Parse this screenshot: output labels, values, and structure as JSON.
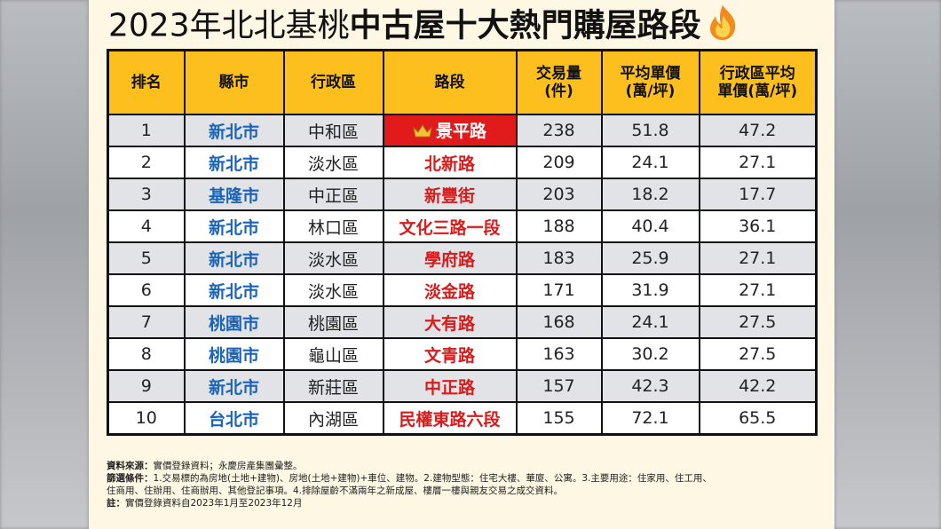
{
  "title": {
    "light": "2023年北北基桃",
    "bold": "中古屋十大熱門購屋路段"
  },
  "headers": [
    "排名",
    "縣市",
    "行政區",
    "路段",
    "交易量\n(件)",
    "平均單價\n(萬/坪)",
    "行政區平均\n單價(萬/坪)"
  ],
  "rows": [
    {
      "rank": "1",
      "city": "新北市",
      "district": "中和區",
      "road": "景平路",
      "volume": "238",
      "avg_price": "51.8",
      "district_avg": "47.2"
    },
    {
      "rank": "2",
      "city": "新北市",
      "district": "淡水區",
      "road": "北新路",
      "volume": "209",
      "avg_price": "24.1",
      "district_avg": "27.1"
    },
    {
      "rank": "3",
      "city": "基隆市",
      "district": "中正區",
      "road": "新豐街",
      "volume": "203",
      "avg_price": "18.2",
      "district_avg": "17.7"
    },
    {
      "rank": "4",
      "city": "新北市",
      "district": "林口區",
      "road": "文化三路一段",
      "volume": "188",
      "avg_price": "40.4",
      "district_avg": "36.1"
    },
    {
      "rank": "5",
      "city": "新北市",
      "district": "淡水區",
      "road": "學府路",
      "volume": "183",
      "avg_price": "25.9",
      "district_avg": "27.1"
    },
    {
      "rank": "6",
      "city": "新北市",
      "district": "淡水區",
      "road": "淡金路",
      "volume": "171",
      "avg_price": "31.9",
      "district_avg": "27.1"
    },
    {
      "rank": "7",
      "city": "桃園市",
      "district": "桃園區",
      "road": "大有路",
      "volume": "168",
      "avg_price": "24.1",
      "district_avg": "27.5"
    },
    {
      "rank": "8",
      "city": "桃園市",
      "district": "龜山區",
      "road": "文青路",
      "volume": "163",
      "avg_price": "30.2",
      "district_avg": "27.5"
    },
    {
      "rank": "9",
      "city": "新北市",
      "district": "新莊區",
      "road": "中正路",
      "volume": "157",
      "avg_price": "42.3",
      "district_avg": "42.2"
    },
    {
      "rank": "10",
      "city": "台北市",
      "district": "內湖區",
      "road": "民權東路六段",
      "volume": "155",
      "avg_price": "72.1",
      "district_avg": "65.5"
    }
  ],
  "notes": {
    "source_label": "資料來源：",
    "source": "實價登錄資料；永慶房產集團彙整。",
    "filter_label": "篩選條件：",
    "filter_1": "1.交易標的為房地(土地+建物)、房地(土地+建物)+車位、建物。2.建物型態：住宅大樓、華廈、公寓。3.主要用途：住家用、住工用、",
    "filter_2": "住商用、住辦用、住商辦用、其他登記事項。4.排除屋齡不滿兩年之新成屋、樓層一樓與親友交易之成交資料。",
    "note_label": "註：",
    "note": "實價登錄資料自2023年1月至2023年12月"
  },
  "icons": {
    "title_icon": "flame-icon",
    "top_rank_icon": "crown-icon"
  },
  "colors": {
    "header_bg": "#fdbf1e",
    "city_text": "#1a64b8",
    "road_text": "#d61c1c",
    "top_road_bg": "#e11b1b"
  }
}
